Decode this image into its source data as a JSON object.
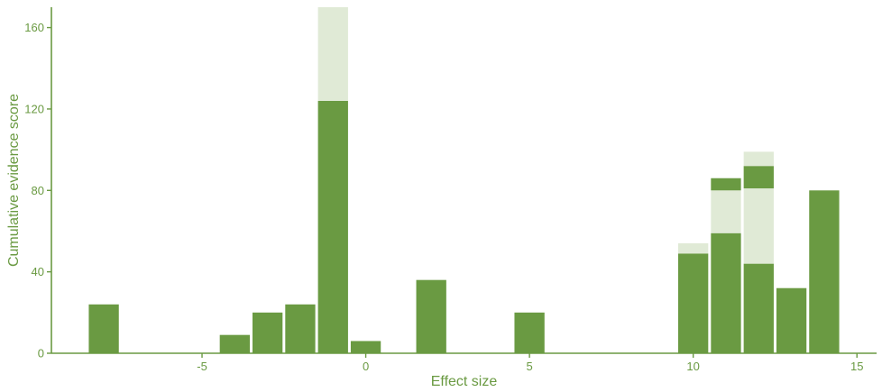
{
  "colors": {
    "accent": "#6a9a42",
    "bar_dark": "#6a9a42",
    "bar_light": "#e0ead6",
    "axis": "#6a9a42",
    "text": "#6a9a42"
  },
  "chart_data": {
    "type": "bar",
    "subtype": "stacked-histogram",
    "xlabel": "Effect size",
    "ylabel": "Cumulative evidence score",
    "xlim": [
      -9.6,
      15.6
    ],
    "ylim": [
      0,
      170
    ],
    "xticks": [
      -5,
      0,
      5,
      10,
      15
    ],
    "yticks": [
      0,
      40,
      80,
      120,
      160
    ],
    "bin_width": 1,
    "grid": false,
    "legend": "none",
    "bars": [
      {
        "x": -8,
        "segments": [
          {
            "from": 0,
            "to": 24,
            "shade": "dark"
          }
        ]
      },
      {
        "x": -4,
        "segments": [
          {
            "from": 0,
            "to": 9,
            "shade": "dark"
          }
        ]
      },
      {
        "x": -3,
        "segments": [
          {
            "from": 0,
            "to": 20,
            "shade": "dark"
          }
        ]
      },
      {
        "x": -2,
        "segments": [
          {
            "from": 0,
            "to": 24,
            "shade": "dark"
          }
        ]
      },
      {
        "x": -1,
        "segments": [
          {
            "from": 0,
            "to": 124,
            "shade": "dark"
          },
          {
            "from": 124,
            "to": 170,
            "shade": "light"
          }
        ]
      },
      {
        "x": 0,
        "segments": [
          {
            "from": 0,
            "to": 6,
            "shade": "dark"
          }
        ]
      },
      {
        "x": 2,
        "segments": [
          {
            "from": 0,
            "to": 36,
            "shade": "dark"
          }
        ]
      },
      {
        "x": 5,
        "segments": [
          {
            "from": 0,
            "to": 20,
            "shade": "dark"
          }
        ]
      },
      {
        "x": 10,
        "segments": [
          {
            "from": 0,
            "to": 49,
            "shade": "dark"
          },
          {
            "from": 49,
            "to": 54,
            "shade": "light"
          }
        ]
      },
      {
        "x": 11,
        "segments": [
          {
            "from": 0,
            "to": 59,
            "shade": "dark"
          },
          {
            "from": 59,
            "to": 80,
            "shade": "light"
          },
          {
            "from": 80,
            "to": 86,
            "shade": "dark"
          }
        ]
      },
      {
        "x": 12,
        "segments": [
          {
            "from": 0,
            "to": 44,
            "shade": "dark"
          },
          {
            "from": 44,
            "to": 81,
            "shade": "light"
          },
          {
            "from": 81,
            "to": 92,
            "shade": "dark"
          },
          {
            "from": 92,
            "to": 99,
            "shade": "light"
          }
        ]
      },
      {
        "x": 13,
        "segments": [
          {
            "from": 0,
            "to": 32,
            "shade": "dark"
          }
        ]
      },
      {
        "x": 14,
        "segments": [
          {
            "from": 0,
            "to": 80,
            "shade": "dark"
          }
        ]
      }
    ]
  }
}
